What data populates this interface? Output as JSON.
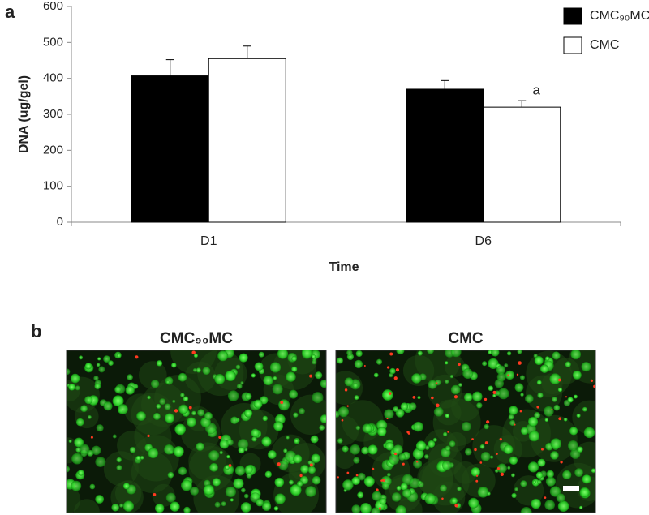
{
  "panel_labels": [
    "a",
    "b"
  ],
  "chart_data": {
    "type": "bar",
    "ylabel": "DNA (ug/gel)",
    "xlabel": "Time",
    "categories": [
      "D1",
      "D6"
    ],
    "series": [
      {
        "name": "CMC₉₀MC",
        "color": "#000000",
        "values": [
          407,
          370
        ],
        "errors": [
          45,
          24
        ]
      },
      {
        "name": "CMC",
        "color": "#ffffff",
        "values": [
          455,
          320
        ],
        "errors": [
          35,
          18
        ]
      }
    ],
    "annotations": [
      {
        "text": "a",
        "series": 1,
        "category": 1
      }
    ],
    "ylim": [
      0,
      600
    ],
    "yticks": [
      0,
      100,
      200,
      300,
      400,
      500,
      600
    ],
    "legend": "top-right"
  },
  "images": [
    {
      "title": "CMC₉₀MC"
    },
    {
      "title": "CMC"
    }
  ]
}
